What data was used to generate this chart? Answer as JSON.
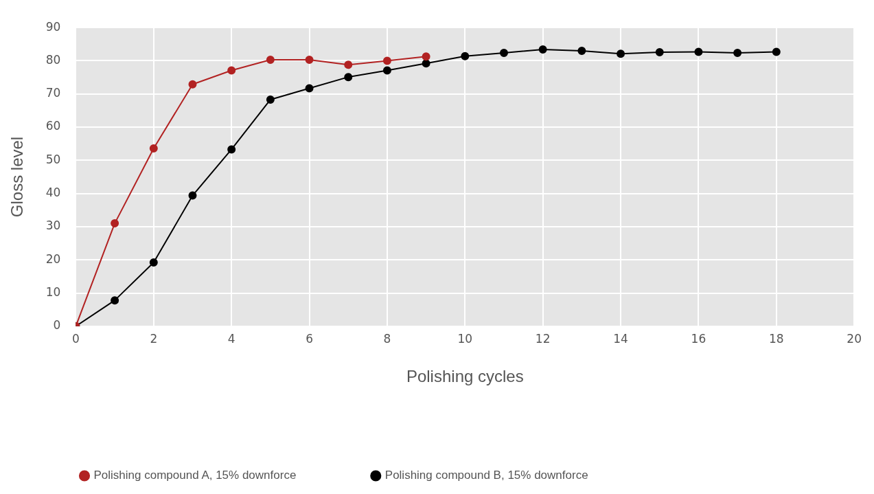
{
  "chart_data": {
    "type": "line",
    "xlabel": "Polishing cycles",
    "ylabel": "Gloss level",
    "xlim": [
      0,
      20
    ],
    "xticks": [
      0,
      2,
      4,
      6,
      8,
      10,
      12,
      14,
      16,
      18,
      20
    ],
    "ylim": [
      0,
      90
    ],
    "yticks": [
      0,
      10,
      20,
      30,
      40,
      50,
      60,
      70,
      80,
      90
    ],
    "grid": true,
    "legend": "bottom",
    "marker": "circle",
    "line_style": "solid",
    "series": [
      {
        "name": "Polishing compound A, 15% downforce",
        "color": "#b22222",
        "x": [
          0,
          1,
          2,
          3,
          4,
          5,
          6,
          7,
          8,
          9
        ],
        "values": [
          0,
          31.0,
          53.6,
          72.9,
          77.1,
          80.3,
          80.3,
          78.8,
          80.0,
          81.3
        ]
      },
      {
        "name": "Polishing compound B, 15% downforce",
        "color": "#000000",
        "x": [
          0,
          1,
          2,
          3,
          4,
          5,
          6,
          7,
          8,
          9,
          10,
          11,
          12,
          13,
          14,
          15,
          16,
          17,
          18
        ],
        "values": [
          0,
          7.8,
          19.2,
          39.4,
          53.3,
          68.3,
          71.7,
          75.1,
          77.1,
          79.2,
          81.4,
          82.4,
          83.4,
          83.0,
          82.1,
          82.6,
          82.7,
          82.4,
          82.7
        ]
      }
    ]
  }
}
